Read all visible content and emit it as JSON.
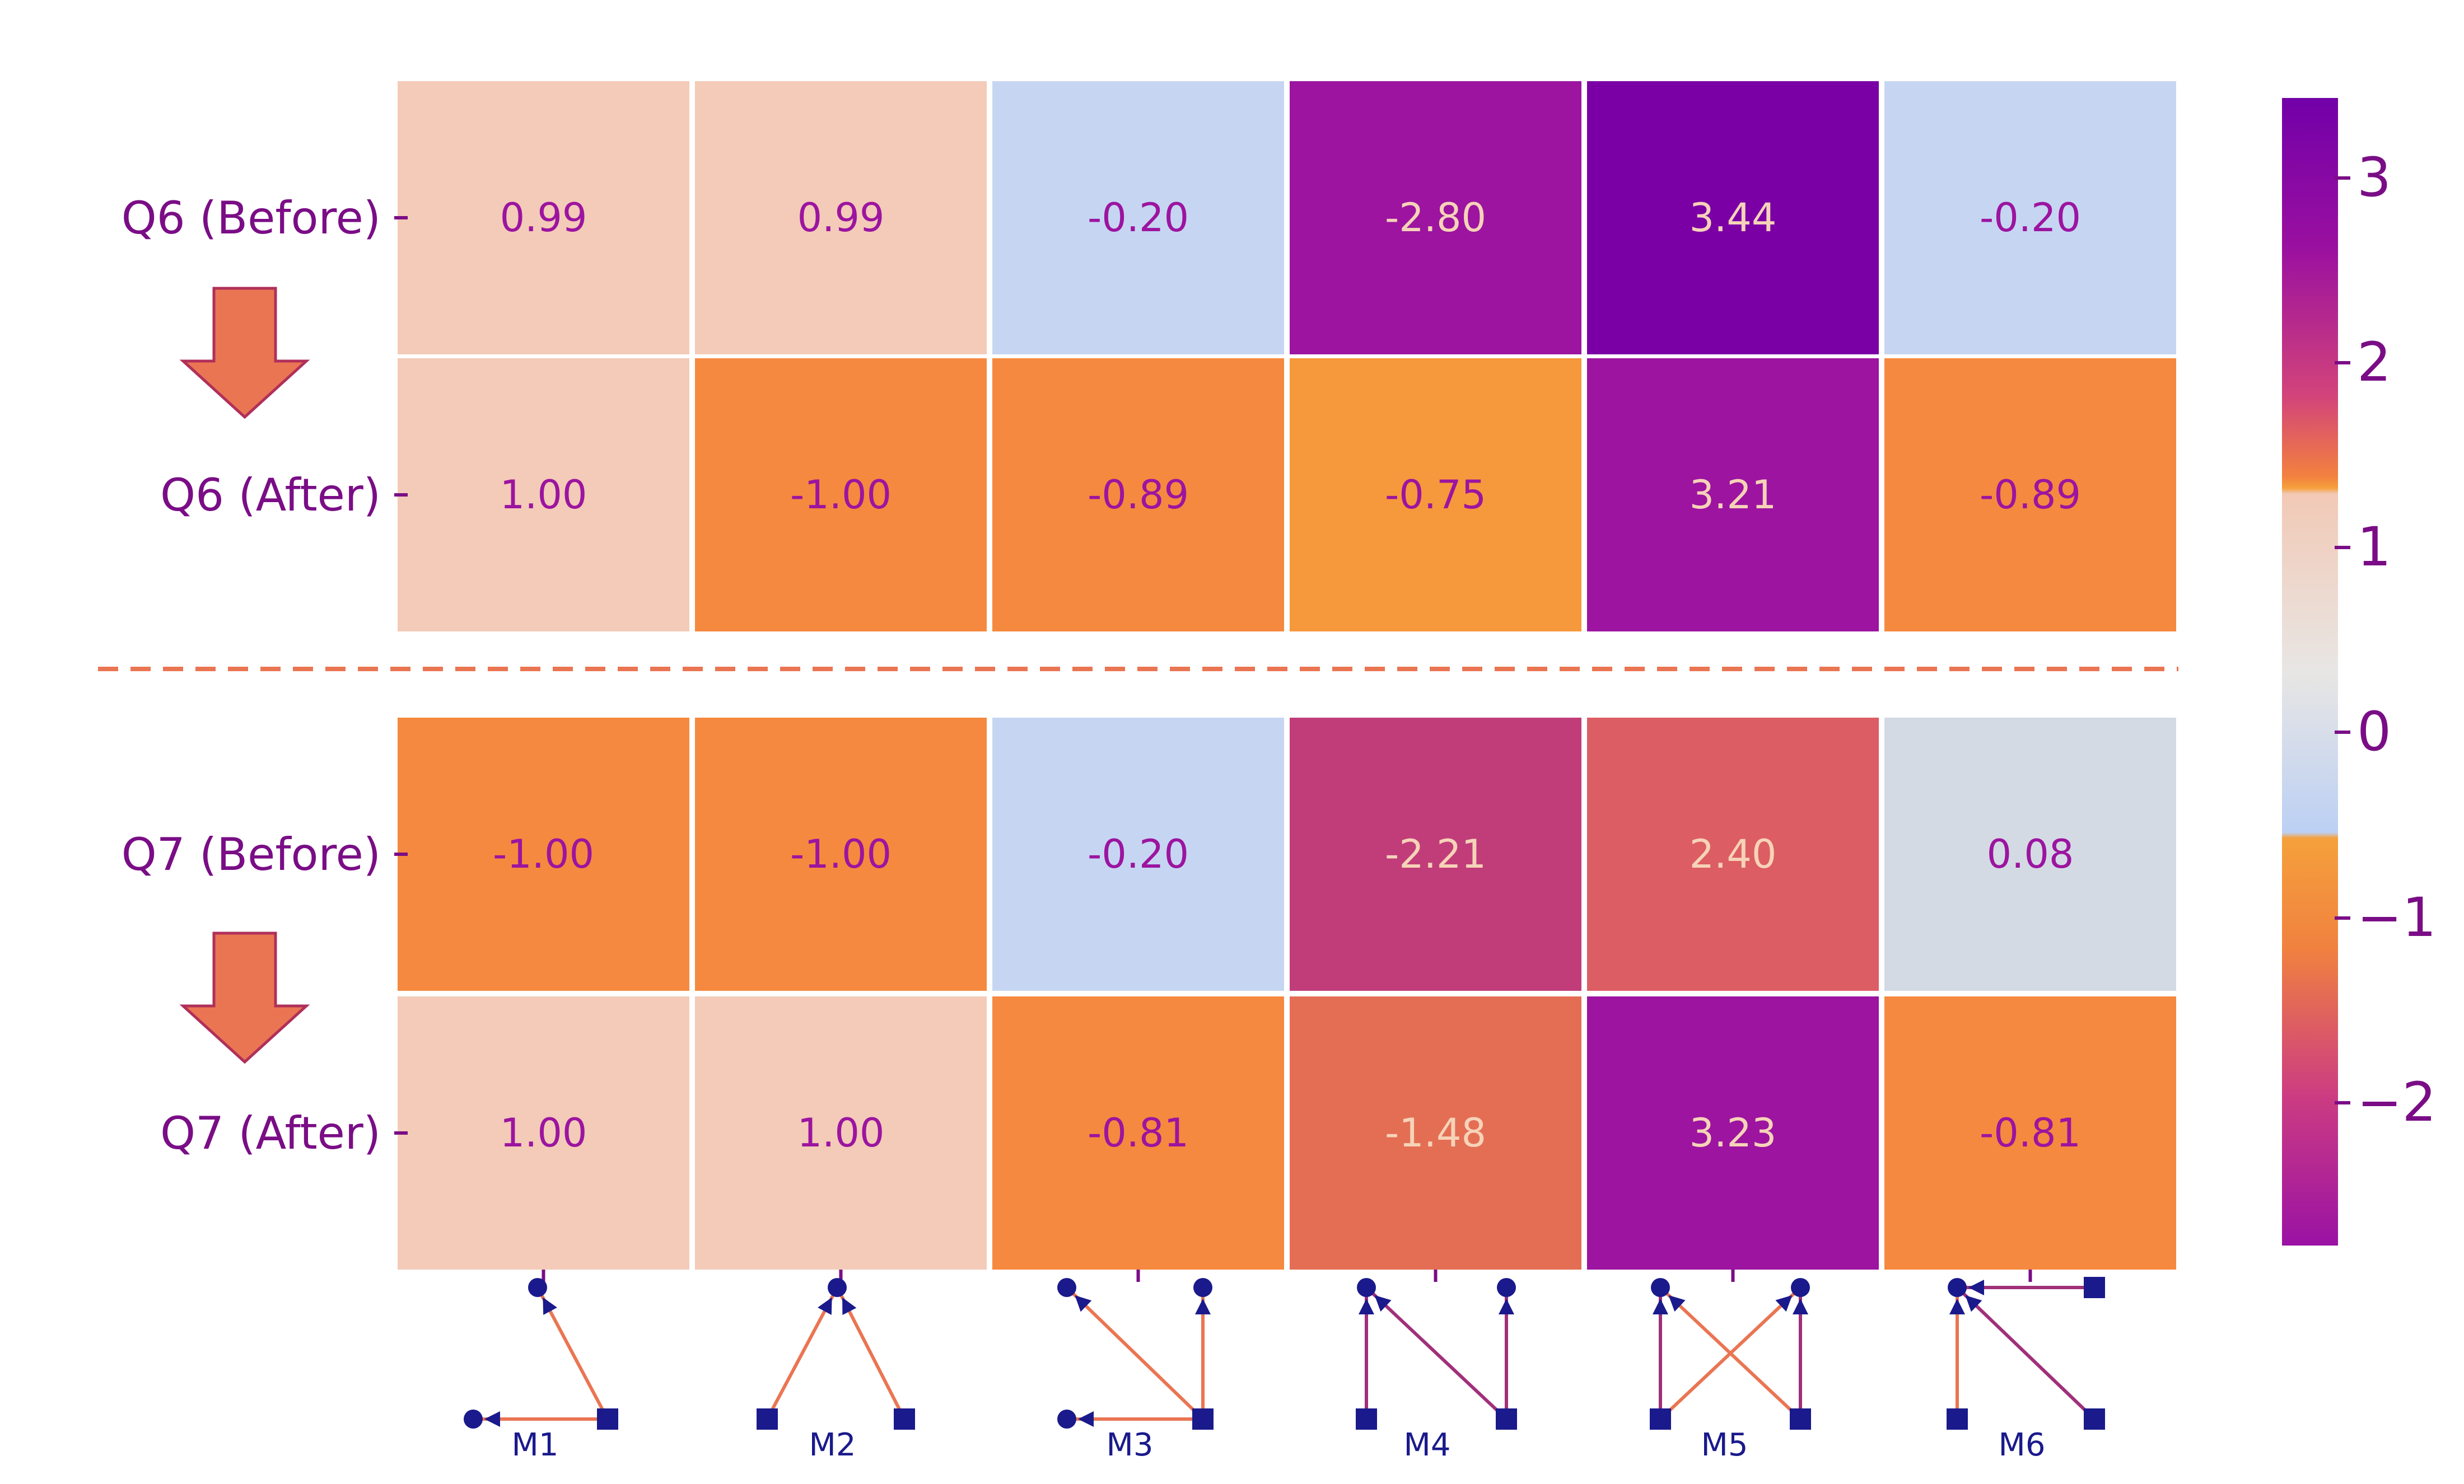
{
  "chart_data": {
    "type": "heatmap",
    "rows": [
      "Q6 (Before)",
      "Q6 (After)",
      "Q7 (Before)",
      "Q7 (After)"
    ],
    "columns": [
      "M1",
      "M2",
      "M3",
      "M4",
      "M5",
      "M6"
    ],
    "values": [
      [
        0.99,
        0.99,
        -0.2,
        -2.8,
        3.44,
        -0.2
      ],
      [
        1.0,
        -1.0,
        -0.89,
        -0.75,
        3.21,
        -0.89
      ],
      [
        -1.0,
        -1.0,
        -0.2,
        -2.21,
        2.4,
        0.08
      ],
      [
        1.0,
        1.0,
        -0.81,
        -1.48,
        3.23,
        -0.81
      ]
    ],
    "value_labels": [
      [
        "0.99",
        "0.99",
        "-0.20",
        "-2.80",
        "3.44",
        "-0.20"
      ],
      [
        "1.00",
        "-1.00",
        "-0.89",
        "-0.75",
        "3.21",
        "-0.89"
      ],
      [
        "-1.00",
        "-1.00",
        "-0.20",
        "-2.21",
        "2.40",
        "0.08"
      ],
      [
        "1.00",
        "1.00",
        "-0.81",
        "-1.48",
        "3.23",
        "-0.81"
      ]
    ],
    "colorbar": {
      "range": [
        -2.8,
        3.44
      ],
      "ticks": [
        3,
        2,
        1,
        0,
        -1,
        -2
      ],
      "tick_labels": [
        "3",
        "2",
        "1",
        "0",
        "−1",
        "−2"
      ]
    },
    "separator": "dashed line between Q6 and Q7 groups",
    "transition_arrows": [
      "Q6 (Before) to Q6 (After)",
      "Q7 (Before) to Q7 (After)"
    ]
  },
  "colors": {
    "light_peach": "#f3cbb8",
    "light_blue": "#c6d6f2",
    "gray": "#d4dae4",
    "orange": "#f5893f",
    "orange_bright": "#f6983c",
    "salmon": "#dd5d64",
    "coral": "#e46e54",
    "magenta": "#c13d7a",
    "purple": "#9c14a0",
    "purple_dark": "#7a00a6",
    "arrow": "#ea7552",
    "separator": "#ea7552",
    "motif_node": "#1a1a8c",
    "motif_edge_a": "#ea7552",
    "motif_edge_b": "#a0307a"
  }
}
